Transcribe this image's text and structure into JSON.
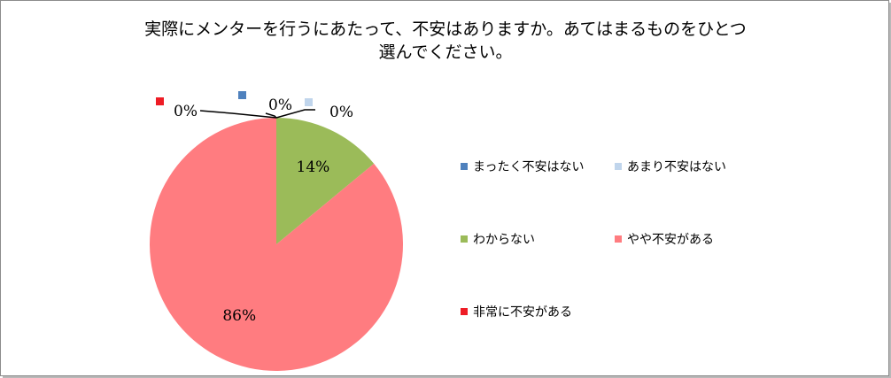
{
  "chart_data": {
    "type": "pie",
    "title_lines": [
      "実際にメンターを行うにあたって、不安はありますか。あてはまるものをひとつ",
      "選んでください。"
    ],
    "categories": [
      "まったく不安はない",
      "あまり不安はない",
      "わからない",
      "やや不安がある",
      "非常に不安がある"
    ],
    "values": [
      0,
      0,
      14,
      86,
      0
    ],
    "data_labels": [
      "0%",
      "0%",
      "14%",
      "86%",
      "0%"
    ],
    "colors": [
      "#4f81bd",
      "#c0d5ec",
      "#9bbb59",
      "#ff7c80",
      "#ee1c25"
    ],
    "legend_position": "right"
  }
}
